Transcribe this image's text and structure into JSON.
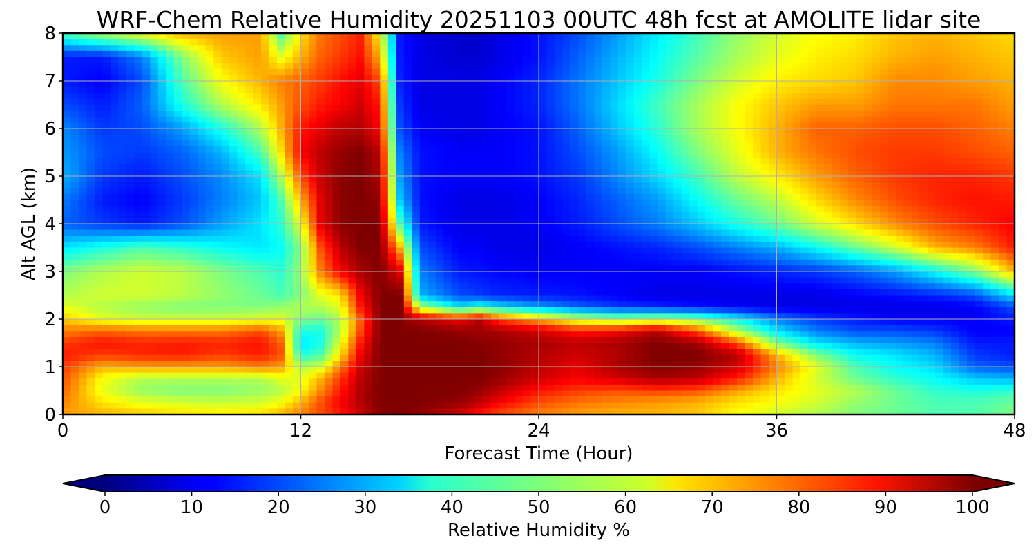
{
  "chart_data": {
    "type": "heatmap",
    "title": "WRF-Chem Relative Humidity 20251103 00UTC 48h fcst at AMOLITE lidar site",
    "xlabel": "Forecast Time (Hour)",
    "ylabel": "Alt AGL (km)",
    "xlim": [
      0,
      48
    ],
    "ylim": [
      0,
      8
    ],
    "x_ticks": [
      0,
      12,
      24,
      36,
      48
    ],
    "x_tick_labels": [
      "0",
      "12",
      "24",
      "36",
      "48"
    ],
    "y_ticks": [
      0,
      1,
      2,
      3,
      4,
      5,
      6,
      7,
      8
    ],
    "y_tick_labels": [
      "0",
      "1",
      "2",
      "3",
      "4",
      "5",
      "6",
      "7",
      "8"
    ],
    "grid": true,
    "colormap": "jet",
    "colorbar": {
      "label": "Relative Humidity %",
      "range": [
        0,
        100
      ],
      "orientation": "horizontal",
      "placement": "bottom",
      "extend": "both",
      "ticks": [
        0,
        10,
        20,
        30,
        40,
        50,
        60,
        70,
        80,
        90,
        100
      ],
      "tick_labels": [
        "0",
        "10",
        "20",
        "30",
        "40",
        "50",
        "60",
        "70",
        "80",
        "90",
        "100"
      ]
    },
    "x": [
      0,
      2,
      4,
      6,
      8,
      10,
      11,
      12,
      13,
      14,
      15,
      16,
      17,
      18,
      20,
      21,
      22,
      24,
      26,
      28,
      30,
      32,
      34,
      36,
      38,
      40,
      42,
      44,
      46,
      48
    ],
    "y": [
      0,
      0.25,
      0.5,
      0.75,
      1,
      1.25,
      1.5,
      1.75,
      2,
      2.25,
      2.5,
      3,
      3.5,
      4,
      4.5,
      5,
      5.5,
      6,
      6.5,
      7,
      7.5,
      8
    ],
    "z": [
      [
        72,
        70,
        68,
        66,
        65,
        66,
        70,
        75,
        80,
        85,
        92,
        99,
        100,
        98,
        92,
        85,
        80,
        75,
        72,
        70,
        70,
        68,
        62,
        58,
        55,
        50,
        48,
        45,
        45,
        50
      ],
      [
        75,
        65,
        60,
        58,
        57,
        58,
        62,
        70,
        80,
        88,
        95,
        100,
        100,
        100,
        98,
        94,
        88,
        80,
        76,
        74,
        72,
        70,
        65,
        62,
        58,
        52,
        48,
        45,
        45,
        48
      ],
      [
        78,
        60,
        52,
        50,
        50,
        52,
        55,
        62,
        74,
        85,
        95,
        100,
        100,
        100,
        100,
        98,
        94,
        86,
        82,
        80,
        82,
        80,
        72,
        65,
        60,
        55,
        48,
        42,
        40,
        42
      ],
      [
        80,
        62,
        55,
        55,
        55,
        55,
        60,
        60,
        70,
        82,
        94,
        100,
        100,
        100,
        100,
        100,
        98,
        92,
        88,
        92,
        96,
        94,
        85,
        70,
        58,
        48,
        42,
        38,
        32,
        30
      ],
      [
        82,
        70,
        72,
        72,
        72,
        75,
        72,
        55,
        58,
        75,
        92,
        100,
        100,
        100,
        100,
        100,
        99,
        94,
        90,
        96,
        100,
        98,
        92,
        75,
        60,
        45,
        38,
        34,
        22,
        20
      ],
      [
        85,
        82,
        84,
        85,
        82,
        85,
        80,
        40,
        45,
        65,
        88,
        100,
        100,
        100,
        100,
        100,
        98,
        95,
        92,
        95,
        100,
        100,
        95,
        70,
        50,
        38,
        35,
        30,
        18,
        15
      ],
      [
        82,
        86,
        84,
        85,
        84,
        86,
        78,
        35,
        40,
        60,
        85,
        100,
        100,
        100,
        100,
        99,
        98,
        96,
        94,
        96,
        100,
        97,
        80,
        50,
        35,
        30,
        28,
        25,
        15,
        15
      ],
      [
        75,
        78,
        76,
        76,
        76,
        80,
        72,
        40,
        40,
        55,
        80,
        100,
        100,
        100,
        98,
        97,
        96,
        92,
        85,
        88,
        95,
        80,
        55,
        35,
        25,
        20,
        20,
        18,
        12,
        12
      ],
      [
        68,
        60,
        58,
        58,
        58,
        60,
        60,
        50,
        48,
        55,
        78,
        100,
        100,
        95,
        88,
        95,
        82,
        70,
        58,
        52,
        55,
        50,
        38,
        25,
        18,
        15,
        12,
        12,
        12,
        15
      ],
      [
        60,
        55,
        52,
        50,
        50,
        50,
        52,
        55,
        55,
        60,
        85,
        100,
        100,
        55,
        35,
        40,
        35,
        28,
        22,
        18,
        16,
        14,
        12,
        10,
        10,
        10,
        10,
        10,
        12,
        20
      ],
      [
        55,
        58,
        58,
        56,
        52,
        48,
        45,
        50,
        60,
        65,
        88,
        100,
        100,
        30,
        20,
        18,
        16,
        15,
        14,
        12,
        10,
        10,
        10,
        10,
        10,
        12,
        14,
        16,
        20,
        35
      ],
      [
        50,
        55,
        58,
        56,
        50,
        45,
        42,
        52,
        75,
        88,
        96,
        100,
        90,
        25,
        15,
        14,
        13,
        12,
        12,
        12,
        12,
        12,
        14,
        16,
        18,
        22,
        28,
        38,
        50,
        70
      ],
      [
        35,
        40,
        45,
        42,
        38,
        35,
        38,
        50,
        80,
        94,
        100,
        100,
        70,
        20,
        12,
        12,
        10,
        10,
        12,
        14,
        16,
        20,
        25,
        30,
        38,
        48,
        58,
        70,
        75,
        85
      ],
      [
        22,
        18,
        15,
        20,
        28,
        35,
        42,
        60,
        90,
        99,
        100,
        100,
        45,
        15,
        10,
        10,
        10,
        12,
        15,
        20,
        25,
        32,
        40,
        48,
        58,
        66,
        74,
        80,
        84,
        88
      ],
      [
        25,
        15,
        12,
        18,
        25,
        32,
        45,
        70,
        90,
        99,
        100,
        98,
        32,
        14,
        10,
        10,
        10,
        12,
        16,
        22,
        28,
        38,
        48,
        56,
        66,
        74,
        80,
        84,
        86,
        85
      ],
      [
        30,
        18,
        15,
        20,
        26,
        35,
        55,
        80,
        93,
        99,
        100,
        96,
        28,
        14,
        12,
        12,
        12,
        14,
        18,
        26,
        34,
        44,
        56,
        64,
        72,
        78,
        82,
        84,
        84,
        82
      ],
      [
        28,
        20,
        18,
        22,
        30,
        45,
        65,
        88,
        94,
        98,
        100,
        94,
        25,
        14,
        12,
        12,
        12,
        14,
        20,
        28,
        38,
        50,
        60,
        70,
        76,
        80,
        82,
        82,
        80,
        78
      ],
      [
        26,
        18,
        20,
        28,
        40,
        55,
        70,
        85,
        90,
        94,
        95,
        88,
        20,
        12,
        10,
        10,
        12,
        14,
        22,
        32,
        42,
        54,
        62,
        70,
        78,
        78,
        80,
        80,
        78,
        75
      ],
      [
        20,
        15,
        22,
        40,
        55,
        65,
        72,
        80,
        85,
        88,
        92,
        85,
        18,
        10,
        10,
        10,
        12,
        16,
        24,
        34,
        44,
        54,
        62,
        68,
        72,
        72,
        76,
        76,
        76,
        72
      ],
      [
        15,
        12,
        20,
        45,
        62,
        70,
        75,
        78,
        82,
        86,
        90,
        80,
        16,
        10,
        10,
        10,
        12,
        16,
        24,
        32,
        40,
        50,
        58,
        64,
        66,
        68,
        74,
        74,
        72,
        70
      ],
      [
        15,
        15,
        25,
        50,
        68,
        72,
        60,
        70,
        78,
        82,
        86,
        70,
        15,
        10,
        8,
        8,
        10,
        14,
        22,
        30,
        38,
        46,
        54,
        60,
        64,
        66,
        70,
        72,
        70,
        68
      ],
      [
        45,
        55,
        62,
        70,
        72,
        72,
        45,
        65,
        76,
        80,
        84,
        62,
        15,
        10,
        8,
        8,
        10,
        14,
        20,
        28,
        36,
        44,
        52,
        58,
        62,
        64,
        68,
        70,
        68,
        66
      ]
    ]
  }
}
